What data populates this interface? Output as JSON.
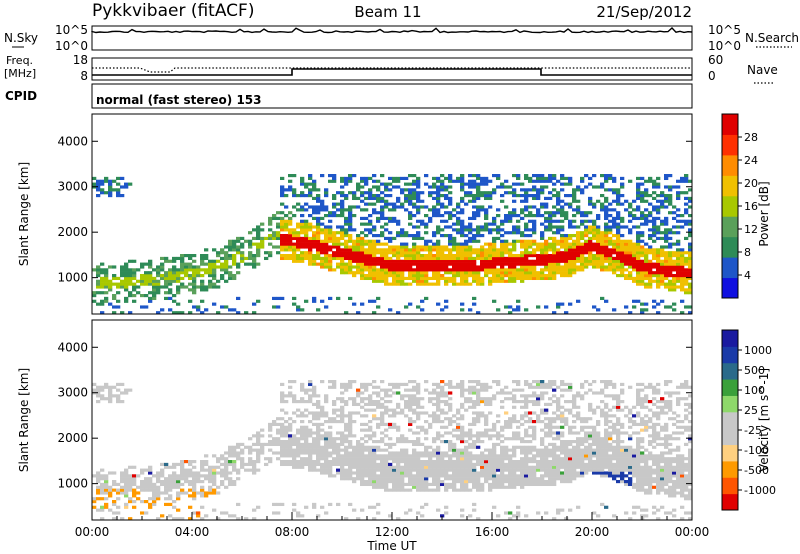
{
  "header": {
    "title": "Pykkvibaer (fitACF)",
    "beam": "Beam 11",
    "date": "21/Sep/2012"
  },
  "strip_nsky": {
    "left_label": "N.Sky",
    "right_label": "N.Search",
    "left_ticks": [
      "10^5",
      "10^0"
    ],
    "right_ticks": [
      "10^5",
      "10^0"
    ]
  },
  "strip_freq": {
    "left_label_line1": "Freq.",
    "left_label_line2": "[MHz]",
    "right_label": "Nave",
    "left_ticks": [
      "18",
      "8"
    ],
    "right_ticks": [
      "60",
      "0"
    ]
  },
  "strip_cpid": {
    "left_label": "CPID",
    "text": "normal (fast stereo) 153"
  },
  "colors": {
    "power_scale": [
      "#1010e0",
      "#1e56c8",
      "#2e8b57",
      "#5aa05a",
      "#a8c800",
      "#f0c000",
      "#ff8c00",
      "#ff3000",
      "#e00000"
    ],
    "velocity_scale": [
      "#e00000",
      "#ff5500",
      "#ff9a00",
      "#ffd080",
      "#c8c8c8",
      "#c8c8c8",
      "#8ed86a",
      "#3aa03a",
      "#2a6a8a",
      "#1a3aa8",
      "#1a1aa0"
    ]
  },
  "chart_data": [
    {
      "type": "heatmap",
      "panel": "power",
      "ylabel": "Slant Range [km]",
      "xlim": [
        0,
        24
      ],
      "ylim": [
        200,
        4600
      ],
      "yticks": [
        1000,
        2000,
        3000,
        4000
      ],
      "colorbar": {
        "label": "Power [dB]",
        "ticks": [
          4,
          8,
          12,
          16,
          20,
          24,
          28
        ],
        "range": [
          0,
          32
        ]
      },
      "bands": [
        {
          "x": [
            0,
            8
          ],
          "y0": [
            850,
            900,
            950,
            1000,
            1100,
            1250,
            1500,
            1900,
            2150
          ],
          "core": 0.25
        },
        {
          "x": [
            7.5,
            24
          ],
          "y0": [
            1850,
            1750,
            1600,
            1450,
            1300,
            1250,
            1250,
            1250,
            1300,
            1350,
            1400,
            1450,
            1700,
            1500,
            1250,
            1150,
            1100
          ],
          "core": 0.9
        }
      ]
    },
    {
      "type": "heatmap",
      "panel": "velocity",
      "ylabel": "Slant Range [km]",
      "xlabel": "Time UT",
      "xlim": [
        0,
        24
      ],
      "ylim": [
        200,
        4600
      ],
      "xticks": [
        "00:00",
        "04:00",
        "08:00",
        "12:00",
        "16:00",
        "20:00",
        "00:00"
      ],
      "yticks": [
        1000,
        2000,
        3000,
        4000
      ],
      "colorbar": {
        "label": "Velocity [m s^-1]",
        "ticks": [
          1000,
          500,
          100,
          25,
          -25,
          -100,
          -500,
          -1000
        ]
      }
    }
  ]
}
